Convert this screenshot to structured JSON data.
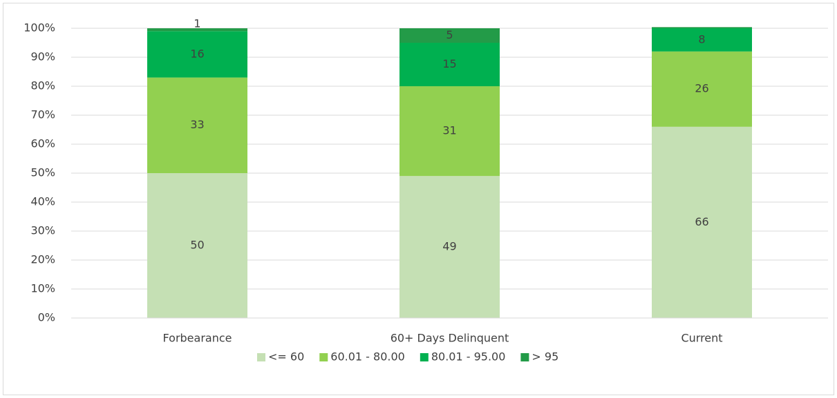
{
  "chart_data": {
    "type": "stacked_bar",
    "categories": [
      "Forbearance",
      "60+ Days Delinquent",
      "Current"
    ],
    "series": [
      {
        "name": "<= 60",
        "color": "#c5e0b4",
        "values": [
          50,
          49,
          66
        ]
      },
      {
        "name": "60.01 - 80.00",
        "color": "#92d050",
        "values": [
          33,
          31,
          26
        ]
      },
      {
        "name": "80.01 - 95.00",
        "color": "#00b050",
        "values": [
          16,
          15,
          8
        ]
      },
      {
        "name": "> 95",
        "color": "#239b48",
        "values": [
          1,
          5,
          0.4
        ],
        "value_labels": [
          "1",
          "5",
          null
        ]
      }
    ],
    "ylim": [
      0,
      100
    ],
    "yticks": [
      {
        "value": 0,
        "label": "0%"
      },
      {
        "value": 10,
        "label": "10%"
      },
      {
        "value": 20,
        "label": "20%"
      },
      {
        "value": 30,
        "label": "30%"
      },
      {
        "value": 40,
        "label": "40%"
      },
      {
        "value": 50,
        "label": "50%"
      },
      {
        "value": 60,
        "label": "60%"
      },
      {
        "value": 70,
        "label": "70%"
      },
      {
        "value": 80,
        "label": "80%"
      },
      {
        "value": 90,
        "label": "90%"
      },
      {
        "value": 100,
        "label": "100%"
      }
    ],
    "grid": true,
    "legend": "bottom"
  }
}
